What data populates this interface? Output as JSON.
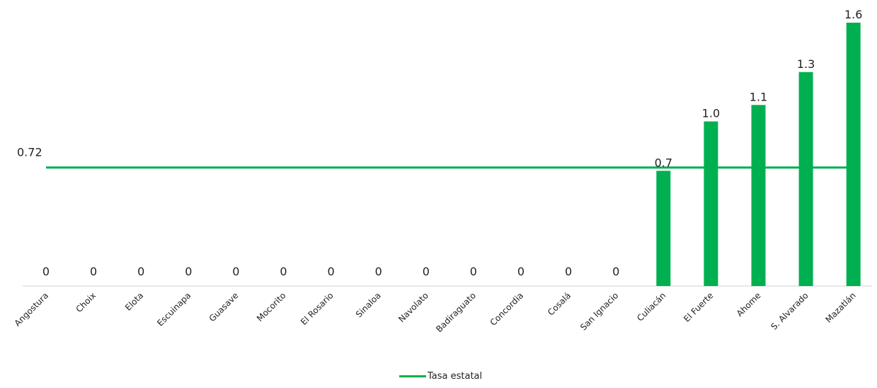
{
  "chart_data": {
    "type": "bar",
    "categories": [
      "Angostura",
      "Choix",
      "Elota",
      "Escuinapa",
      "Guasave",
      "Mocorito",
      "El Rosario",
      "Sinaloa",
      "Navolato",
      "Badiraguato",
      "Concordia",
      "Cosalá",
      "San Ignacio",
      "Culiacán",
      "El Fuerte",
      "Ahome",
      "S. Alvarado",
      "Mazatlán"
    ],
    "values": [
      0,
      0,
      0,
      0,
      0,
      0,
      0,
      0,
      0,
      0,
      0,
      0,
      0,
      0.7,
      1.0,
      1.1,
      1.3,
      1.6
    ],
    "value_labels": [
      "0",
      "0",
      "0",
      "0",
      "0",
      "0",
      "0",
      "0",
      "0",
      "0",
      "0",
      "0",
      "0",
      "0.7",
      "1.0",
      "1.1",
      "1.3",
      "1.6"
    ],
    "reference_line": {
      "name": "Tasa estatal",
      "value": 0.72,
      "label": "0.72"
    },
    "ylim": [
      0,
      1.6
    ],
    "colors": {
      "bar": "#00b050",
      "line": "#00b050"
    },
    "legend": {
      "position": "bottom",
      "entries": [
        "Tasa estatal"
      ]
    }
  }
}
